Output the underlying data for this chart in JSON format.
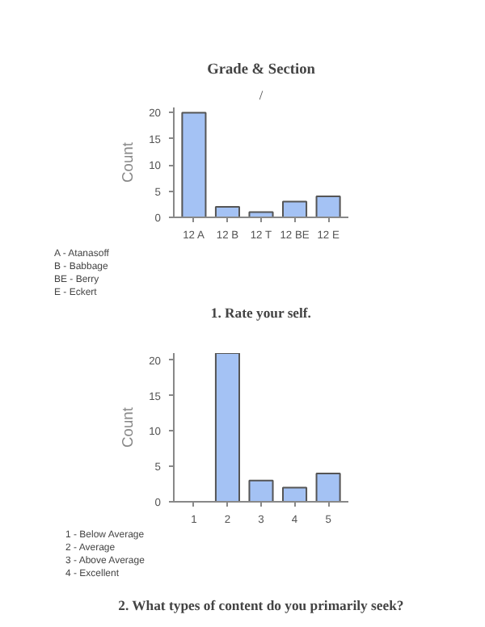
{
  "chart_data": [
    {
      "type": "bar",
      "title": "Grade & Section",
      "subtitle": "/",
      "ylabel": "Count",
      "categories": [
        "12 A",
        "12 B",
        "12 T",
        "12 BE",
        "12 E"
      ],
      "values": [
        20,
        2,
        1,
        3,
        4
      ],
      "color": "#a4c2f4",
      "ylim": [
        0,
        21
      ],
      "yticks": [
        0,
        5,
        10,
        15,
        20
      ],
      "grid": false,
      "annotations": [
        "A - Atanasoff",
        "B - Babbage",
        "BE - Berry",
        "E - Eckert",
        "1. Rate your self."
      ]
    },
    {
      "type": "bar",
      "ylabel": "Count",
      "categories": [
        "1",
        "2",
        "3",
        "4",
        "5"
      ],
      "values": [
        0,
        21,
        3,
        2,
        4
      ],
      "color": "#a4c2f4",
      "ylim": [
        0,
        21
      ],
      "yticks": [
        0,
        5,
        10,
        15,
        20
      ],
      "grid": false,
      "annotations": [
        "1 - Below Average",
        "2 - Average",
        "3 - Above Average",
        "4 - Excellent",
        "2. What types of content do you primarily seek?"
      ]
    }
  ]
}
